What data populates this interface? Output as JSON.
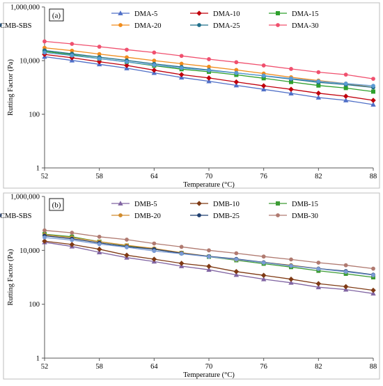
{
  "chart_data": [
    {
      "type": "line",
      "panel_label": "(a)",
      "xlabel": "Temperature (°C)",
      "ylabel": "Rutting Factor (Pa)",
      "xlim": [
        52,
        88
      ],
      "ylim": [
        1,
        1000000
      ],
      "yscale": "log",
      "xticks": [
        "52",
        "58",
        "64",
        "70",
        "76",
        "82",
        "88"
      ],
      "yticks": [
        "1",
        "100",
        "10,000",
        "1,000,000"
      ],
      "x": [
        52,
        55,
        58,
        61,
        64,
        67,
        70,
        73,
        76,
        79,
        82,
        85,
        88
      ],
      "legend": "top-right",
      "series": [
        {
          "name": "DMA-5",
          "color": "#4f6fc7",
          "marker": "triangle",
          "values": [
            14000,
            10200,
            7300,
            5200,
            3500,
            2350,
            1700,
            1200,
            850,
            600,
            420,
            330,
            230
          ]
        },
        {
          "name": "DMA-10",
          "color": "#c0000c",
          "marker": "diamond",
          "values": [
            17000,
            12800,
            9100,
            6600,
            4400,
            3000,
            2250,
            1600,
            1150,
            850,
            610,
            470,
            330
          ]
        },
        {
          "name": "DMA-15",
          "color": "#2ea02c",
          "marker": "square",
          "values": [
            22000,
            16500,
            12000,
            9000,
            6500,
            4800,
            3850,
            2950,
            2200,
            1600,
            1180,
            950,
            700
          ]
        },
        {
          "name": "DMA-20",
          "color": "#f08c1c",
          "marker": "circle",
          "values": [
            30000,
            23500,
            17500,
            13300,
            10000,
            7700,
            5900,
            4500,
            3300,
            2400,
            1800,
            1400,
            1000
          ]
        },
        {
          "name": "DMA-25",
          "color": "#1f6f8b",
          "marker": "circle",
          "values": [
            24000,
            18000,
            13500,
            10200,
            7600,
            5800,
            4500,
            3500,
            2700,
            2050,
            1550,
            1280,
            1000
          ]
        },
        {
          "name": "DMA-30",
          "color": "#f0506e",
          "marker": "circle",
          "values": [
            52000,
            42000,
            33000,
            25500,
            20000,
            15000,
            11300,
            8700,
            6600,
            4900,
            3700,
            3000,
            2100
          ]
        },
        {
          "name": "CMB-SBS",
          "color": "#5b9bd5",
          "marker": "circle",
          "values": [
            20000,
            15500,
            11800,
            9000,
            6800,
            5300,
            4300,
            3450,
            2750,
            2150,
            1700,
            1400,
            1150
          ]
        }
      ]
    },
    {
      "type": "line",
      "panel_label": "(b)",
      "xlabel": "Temperature (°C)",
      "ylabel": "Rutting Factor (Pa)",
      "xlim": [
        52,
        88
      ],
      "ylim": [
        1,
        1000000
      ],
      "yscale": "log",
      "xticks": [
        "52",
        "58",
        "64",
        "70",
        "76",
        "82",
        "88"
      ],
      "yticks": [
        "1",
        "100",
        "10,000",
        "1,000,000"
      ],
      "x": [
        52,
        55,
        58,
        61,
        64,
        67,
        70,
        73,
        76,
        79,
        82,
        85,
        88
      ],
      "legend": "top-right",
      "series": [
        {
          "name": "DMB-5",
          "color": "#8064a2",
          "marker": "triangle",
          "values": [
            20000,
            14000,
            8500,
            5400,
            3850,
            2600,
            1900,
            1230,
            850,
            630,
            430,
            350,
            250
          ]
        },
        {
          "name": "DMB-10",
          "color": "#7f3a14",
          "marker": "diamond",
          "values": [
            22000,
            16500,
            11000,
            6600,
            4700,
            3300,
            2550,
            1630,
            1180,
            850,
            580,
            450,
            330
          ]
        },
        {
          "name": "DMB-15",
          "color": "#3d9c35",
          "marker": "square",
          "values": [
            40000,
            32000,
            21000,
            15000,
            11000,
            8000,
            5800,
            4300,
            3200,
            2400,
            1750,
            1350,
            1000
          ]
        },
        {
          "name": "DMB-20",
          "color": "#d08b2c",
          "marker": "circle",
          "values": [
            38000,
            30000,
            21000,
            15500,
            11800,
            8200,
            6000,
            4500,
            3600,
            2800,
            2100,
            1650,
            1200
          ]
        },
        {
          "name": "DMB-25",
          "color": "#1f3f6f",
          "marker": "circle",
          "values": [
            35000,
            27000,
            19000,
            13800,
            11000,
            7800,
            6000,
            4800,
            3600,
            2700,
            2100,
            1700,
            1250
          ]
        },
        {
          "name": "DMB-30",
          "color": "#b07a70",
          "marker": "circle",
          "values": [
            55000,
            45000,
            32000,
            25000,
            18000,
            13500,
            10000,
            7800,
            5900,
            4600,
            3500,
            2800,
            2100
          ]
        },
        {
          "name": "CMB-SBS",
          "color": "#7a9bd5",
          "marker": "circle",
          "values": [
            30000,
            24000,
            17000,
            13000,
            9500,
            7500,
            5800,
            4600,
            3500,
            2650,
            2050,
            1600,
            1200
          ]
        }
      ]
    }
  ]
}
